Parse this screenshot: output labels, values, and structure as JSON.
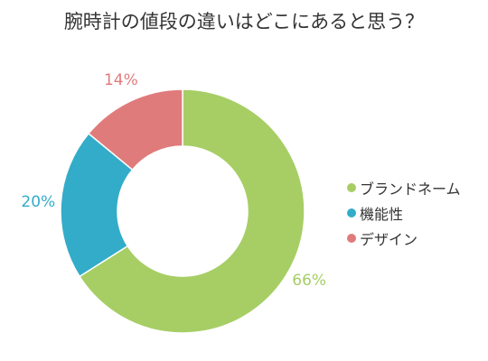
{
  "chart_data": {
    "type": "pie",
    "style": "donut",
    "title": "腕時計の値段の違いはどこにあると思う？",
    "categories": [
      "ブランドネーム",
      "機能性",
      "デザイン"
    ],
    "values": [
      66,
      20,
      14
    ],
    "value_labels": [
      "66%",
      "20%",
      "14%"
    ],
    "colors": [
      "#a6ce65",
      "#33acc9",
      "#e07b7b"
    ],
    "legend": "right"
  }
}
